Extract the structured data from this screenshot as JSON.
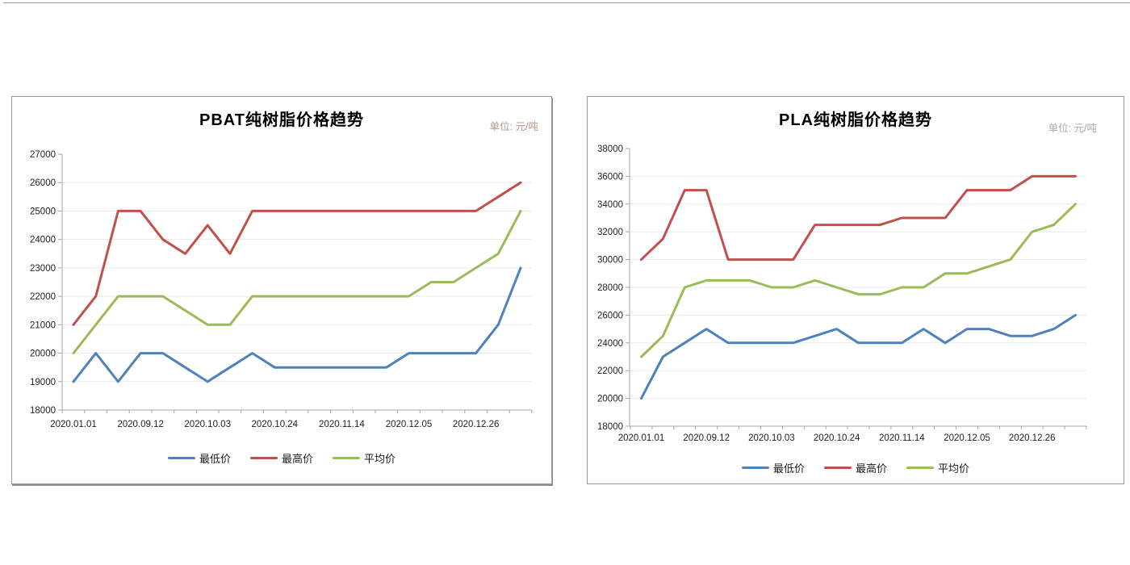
{
  "page": {
    "top_rule_color": "#9a9a9a"
  },
  "chart_data": [
    {
      "type": "line",
      "title": "PBAT纯树脂价格趋势",
      "unit_label": "单位: 元/吨",
      "unit_color": "#b49687",
      "xlabel": "",
      "ylabel": "",
      "ylim": [
        18000,
        27000
      ],
      "y_step": 1000,
      "y_ticks": [
        27000,
        26000,
        25000,
        24000,
        23000,
        22000,
        21000,
        20000,
        19000,
        18000
      ],
      "grid": true,
      "legend_position": "bottom",
      "n_points": 21,
      "x_tick_labels": [
        "2020.01.01",
        "2020.09.12",
        "2020.10.03",
        "2020.10.24",
        "2020.11.14",
        "2020.12.05",
        "2020.12.26"
      ],
      "x_tick_indices": [
        0,
        3,
        6,
        9,
        12,
        15,
        18
      ],
      "series": [
        {
          "key": "lowest",
          "name": "最低价",
          "color": "#4F81BD",
          "values": [
            19000,
            20000,
            19000,
            20000,
            20000,
            19500,
            19000,
            19500,
            20000,
            19500,
            19500,
            19500,
            19500,
            19500,
            19500,
            20000,
            20000,
            20000,
            20000,
            21000,
            23000
          ]
        },
        {
          "key": "highest",
          "name": "最高价",
          "color": "#C0504D",
          "values": [
            21000,
            22000,
            25000,
            25000,
            24000,
            23500,
            24500,
            23500,
            25000,
            25000,
            25000,
            25000,
            25000,
            25000,
            25000,
            25000,
            25000,
            25000,
            25000,
            25500,
            26000
          ]
        },
        {
          "key": "average",
          "name": "平均价",
          "color": "#9BBB59",
          "values": [
            20000,
            21000,
            22000,
            22000,
            22000,
            21500,
            21000,
            21000,
            22000,
            22000,
            22000,
            22000,
            22000,
            22000,
            22000,
            22000,
            22500,
            22500,
            23000,
            23500,
            25000
          ]
        }
      ]
    },
    {
      "type": "line",
      "title": "PLA纯树脂价格趋势",
      "unit_label": "单位: 元/吨",
      "unit_color": "#a8a8a8",
      "xlabel": "",
      "ylabel": "",
      "ylim": [
        18000,
        38000
      ],
      "y_step": 2000,
      "y_ticks": [
        38000,
        36000,
        34000,
        32000,
        30000,
        28000,
        26000,
        24000,
        22000,
        20000,
        18000
      ],
      "grid": true,
      "legend_position": "bottom",
      "n_points": 21,
      "x_tick_labels": [
        "2020.01.01",
        "2020.09.12",
        "2020.10.03",
        "2020.10.24",
        "2020.11.14",
        "2020.12.05",
        "2020.12.26"
      ],
      "x_tick_indices": [
        0,
        3,
        6,
        9,
        12,
        15,
        18
      ],
      "series": [
        {
          "key": "lowest",
          "name": "最低价",
          "color": "#4F81BD",
          "values": [
            20000,
            23000,
            24000,
            25000,
            24000,
            24000,
            24000,
            24000,
            24500,
            25000,
            24000,
            24000,
            24000,
            25000,
            24000,
            25000,
            25000,
            24500,
            24500,
            25000,
            26000
          ]
        },
        {
          "key": "highest",
          "name": "最高价",
          "color": "#C0504D",
          "values": [
            30000,
            31500,
            35000,
            35000,
            30000,
            30000,
            30000,
            30000,
            32500,
            32500,
            32500,
            32500,
            33000,
            33000,
            33000,
            35000,
            35000,
            35000,
            36000,
            36000,
            36000
          ]
        },
        {
          "key": "average",
          "name": "平均价",
          "color": "#9BBB59",
          "values": [
            23000,
            24500,
            28000,
            28500,
            28500,
            28500,
            28000,
            28000,
            28500,
            28000,
            27500,
            27500,
            28000,
            28000,
            29000,
            29000,
            29500,
            30000,
            32000,
            32500,
            34000
          ]
        }
      ]
    }
  ]
}
